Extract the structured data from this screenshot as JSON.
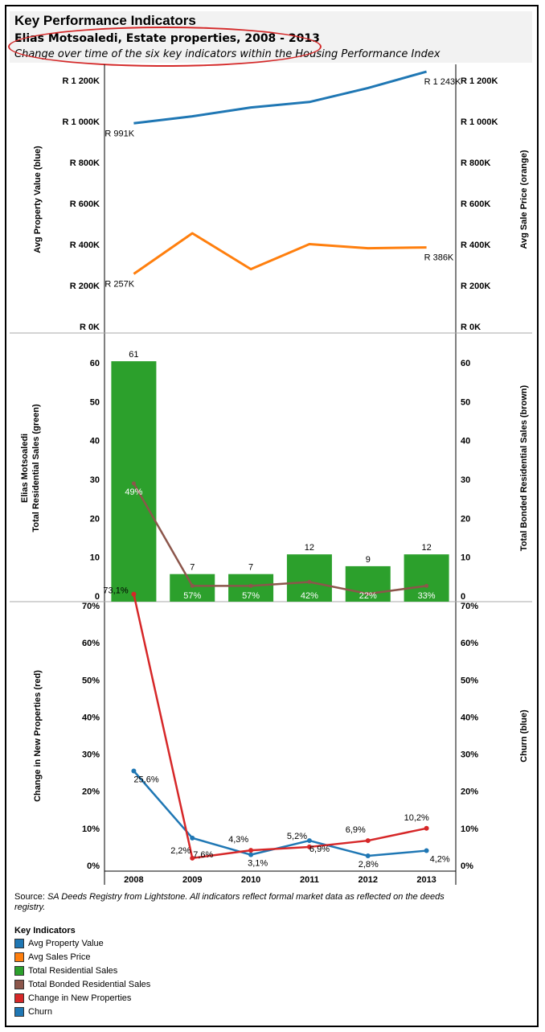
{
  "header": {
    "title": "Key Performance Indicators",
    "subtitle": "Elias Motsoaledi, Estate properties, 2008 - 2013",
    "description": "Change over time of the six key indicators within the Housing Performance Index"
  },
  "colors": {
    "blue": "#1f77b4",
    "orange": "#ff7f0e",
    "green": "#2ca02c",
    "brown": "#8c564b",
    "red": "#d62728",
    "annotation": "#d42a2a"
  },
  "chart_data": [
    {
      "type": "line",
      "x": [
        "2008",
        "2009",
        "2010",
        "2011",
        "2012",
        "2013"
      ],
      "series": [
        {
          "name": "Avg Property Value",
          "color": "blue",
          "values": [
            991,
            1025,
            1068,
            1095,
            1163,
            1243
          ],
          "labels": [
            "R 991K",
            "",
            "",
            "",
            "",
            "R 1 243K"
          ]
        },
        {
          "name": "Avg Sales Price",
          "color": "orange",
          "values": [
            257,
            455,
            280,
            402,
            382,
            386
          ],
          "labels": [
            "R 257K",
            "",
            "",
            "",
            "",
            "R 386K"
          ]
        }
      ],
      "ylabel": "Avg Property Value (blue)",
      "ylabel_right": "Avg Sale Price (orange)",
      "yticks": [
        "R 0K",
        "R 200K",
        "R 400K",
        "R 600K",
        "R 800K",
        "R 1 000K",
        "R 1 200K"
      ],
      "ylim": [
        0,
        1200
      ]
    },
    {
      "type": "bar",
      "x": [
        "2008",
        "2009",
        "2010",
        "2011",
        "2012",
        "2013"
      ],
      "series": [
        {
          "name": "Total Residential Sales",
          "color": "green",
          "values": [
            61,
            7,
            7,
            12,
            9,
            12
          ],
          "labels": [
            "61",
            "7",
            "7",
            "12",
            "9",
            "12"
          ]
        },
        {
          "name": "Total Bonded Residential Sales",
          "color": "brown",
          "values": [
            30,
            4,
            4,
            5,
            2,
            4
          ],
          "percent_labels": [
            "49%",
            "57%",
            "57%",
            "42%",
            "22%",
            "33%"
          ]
        }
      ],
      "ylabel_line1": "Elias Motsoaledi",
      "ylabel_line2": "Total Residential Sales (green)",
      "ylabel_right": "Total Bonded Residential Sales (brown)",
      "yticks": [
        "0",
        "10",
        "20",
        "30",
        "40",
        "50",
        "60"
      ],
      "ylim": [
        0,
        60
      ]
    },
    {
      "type": "line",
      "x": [
        "2008",
        "2009",
        "2010",
        "2011",
        "2012",
        "2013"
      ],
      "series": [
        {
          "name": "Change in New Properties",
          "color": "red",
          "values": [
            73.1,
            2.2,
            4.3,
            5.2,
            6.9,
            10.2
          ],
          "labels": [
            "73,1%",
            "2,2%",
            "4,3%",
            "5,2%",
            "6,9%",
            "10,2%"
          ]
        },
        {
          "name": "Churn",
          "color": "blue",
          "values": [
            25.6,
            7.6,
            3.1,
            6.9,
            2.8,
            4.2
          ],
          "labels": [
            "25,6%",
            "7,6%",
            "3,1%",
            "6,9%",
            "2,8%",
            "4,2%"
          ]
        }
      ],
      "ylabel": "Change in New Properties (red)",
      "ylabel_right": "Churn (blue)",
      "yticks": [
        "0%",
        "10%",
        "20%",
        "30%",
        "40%",
        "50%",
        "60%",
        "70%"
      ],
      "ylim": [
        0,
        70
      ]
    }
  ],
  "source": {
    "prefix": "Source: ",
    "italic_text": "SA Deeds Registry from Lightstone.  All indicators reflect formal market data as reflected on the deeds registry."
  },
  "legend": {
    "title": "Key Indicators",
    "items": [
      {
        "label": "Avg Property Value",
        "color": "blue"
      },
      {
        "label": "Avg Sales Price",
        "color": "orange"
      },
      {
        "label": "Total Residential Sales",
        "color": "green"
      },
      {
        "label": "Total Bonded Residential Sales",
        "color": "brown"
      },
      {
        "label": "Change in New Properties",
        "color": "red"
      },
      {
        "label": "Churn",
        "color": "blue"
      }
    ]
  }
}
